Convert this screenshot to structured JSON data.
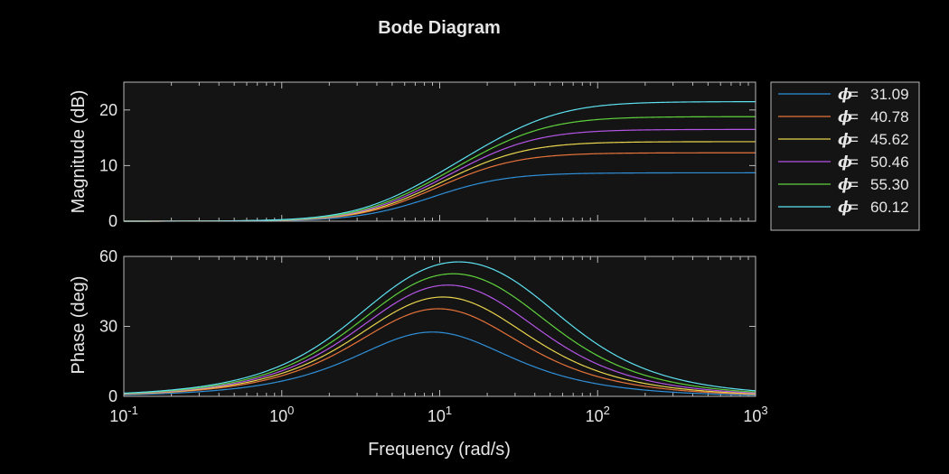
{
  "chart_data": {
    "type": "line",
    "title": "Bode Diagram",
    "xlabel": "Frequency (rad/s)",
    "x_scale": "log",
    "xlim": [
      0.1,
      1000
    ],
    "x_ticks": [
      {
        "base": "10",
        "exp": "-1"
      },
      {
        "base": "10",
        "exp": "0"
      },
      {
        "base": "10",
        "exp": "1"
      },
      {
        "base": "10",
        "exp": "2"
      },
      {
        "base": "10",
        "exp": "3"
      }
    ],
    "legend_position": "outside-right",
    "panels": [
      {
        "id": "magnitude",
        "ylabel": "Magnitude (dB)",
        "ylim": [
          0,
          25
        ],
        "yticks": [
          "0",
          "10",
          "20"
        ]
      },
      {
        "id": "phase",
        "ylabel": "Phase (deg)",
        "ylim": [
          0,
          60
        ],
        "yticks": [
          "0",
          "30",
          "60"
        ]
      }
    ],
    "legend_symbol": "ϕ",
    "series": [
      {
        "name": "31.09",
        "color": "#2f8fd8",
        "phi_max_deg": 28.0,
        "high_freq_gain_db": 8.7,
        "peak_freq": 9.0
      },
      {
        "name": "40.78",
        "color": "#e8743b",
        "phi_max_deg": 37.5,
        "high_freq_gain_db": 12.3,
        "peak_freq": 9.8
      },
      {
        "name": "45.62",
        "color": "#e8d44d",
        "phi_max_deg": 42.5,
        "high_freq_gain_db": 14.3,
        "peak_freq": 10.5
      },
      {
        "name": "50.46",
        "color": "#b455e6",
        "phi_max_deg": 47.5,
        "high_freq_gain_db": 16.5,
        "peak_freq": 11.3
      },
      {
        "name": "55.30",
        "color": "#5ed13c",
        "phi_max_deg": 52.5,
        "high_freq_gain_db": 18.8,
        "peak_freq": 12.2
      },
      {
        "name": "60.12",
        "color": "#5ee1f0",
        "phi_max_deg": 58.0,
        "high_freq_gain_db": 21.5,
        "peak_freq": 13.2
      }
    ]
  },
  "colors": {
    "background": "#000000",
    "plot_area": "#141414",
    "axes": "#b8b8b8",
    "text": "#e6e6e6",
    "legend_bg": "#141414"
  }
}
